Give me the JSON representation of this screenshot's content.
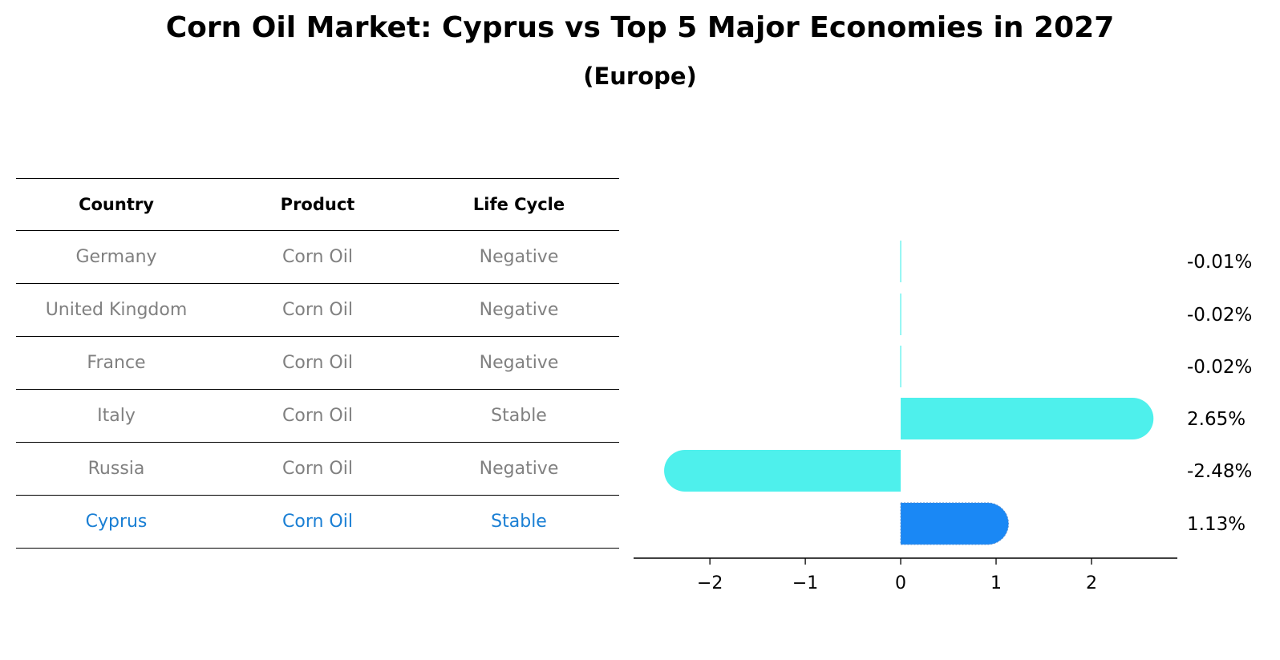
{
  "title": "Corn Oil Market: Cyprus vs Top 5 Major Economies in 2027",
  "subtitle": "(Europe)",
  "table": {
    "headers": [
      "Country",
      "Product",
      "Life Cycle"
    ],
    "rows": [
      {
        "country": "Germany",
        "product": "Corn Oil",
        "life_cycle": "Negative"
      },
      {
        "country": "United Kingdom",
        "product": "Corn Oil",
        "life_cycle": "Negative"
      },
      {
        "country": "France",
        "product": "Corn Oil",
        "life_cycle": "Negative"
      },
      {
        "country": "Italy",
        "product": "Corn Oil",
        "life_cycle": "Stable"
      },
      {
        "country": "Russia",
        "product": "Corn Oil",
        "life_cycle": "Negative"
      },
      {
        "country": "Cyprus",
        "product": "Corn Oil",
        "life_cycle": "Stable"
      }
    ]
  },
  "colors": {
    "highlight_text": "#1a7fd4",
    "muted_text": "#808080",
    "bar_default": "#4ef0ec",
    "bar_highlight": "#1a88f5"
  },
  "chart_data": {
    "type": "bar",
    "orientation": "horizontal",
    "categories": [
      "Germany",
      "United Kingdom",
      "France",
      "Italy",
      "Russia",
      "Cyprus"
    ],
    "values": [
      -0.01,
      -0.02,
      -0.02,
      2.65,
      -2.48,
      1.13
    ],
    "value_labels": [
      "-0.01%",
      "-0.02%",
      "-0.02%",
      "2.65%",
      "-2.48%",
      "1.13%"
    ],
    "highlight": "Cyprus",
    "xlim": [
      -2.8,
      2.9
    ],
    "xticks": [
      -2,
      -1,
      0,
      1,
      2
    ],
    "xtick_labels": [
      "−2",
      "−1",
      "0",
      "1",
      "2"
    ],
    "grid": false
  }
}
